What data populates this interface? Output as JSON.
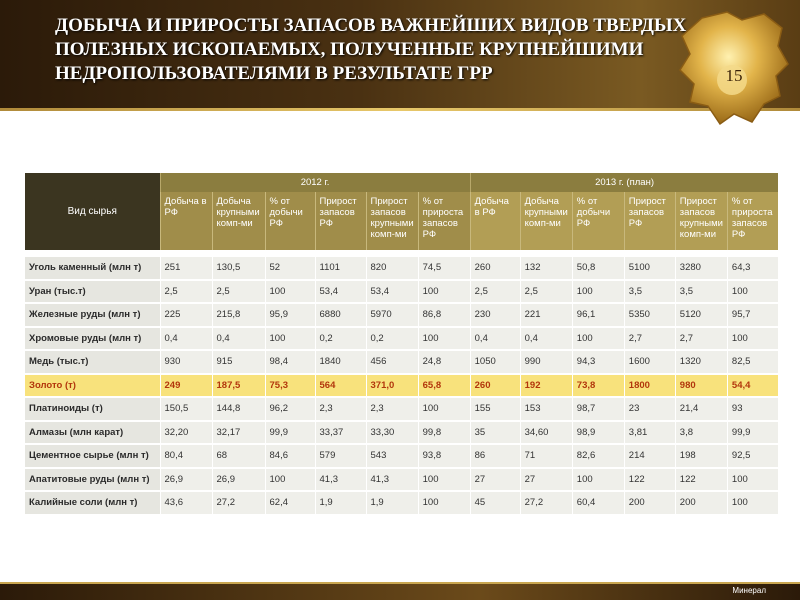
{
  "header": {
    "title": [
      "ДОБЫЧА И ПРИРОСТЫ ЗАПАСОВ ВАЖНЕЙШИХ ВИДОВ ТВЕРДЫХ",
      "ПОЛЕЗНЫХ ИСКОПАЕМЫХ, ПОЛУЧЕННЫЕ КРУПНЕЙШИМИ",
      "НЕДРОПОЛЬЗОВАТЕЛЯМИ В РЕЗУЛЬТАТЕ ГРР"
    ],
    "page_number": "15"
  },
  "table": {
    "corner": "Вид сырья",
    "groups": [
      "2012 г.",
      "2013 г. (план)"
    ],
    "columns": [
      "Добыча в РФ",
      "Добыча крупными комп-ми",
      "% от добычи РФ",
      "Прирост запасов РФ",
      "Прирост запасов крупными комп-ми",
      "% от прироста запасов РФ",
      "Добыча в РФ",
      "Добыча крупными комп-ми",
      "% от добычи РФ",
      "Прирост запасов РФ",
      "Прирост запасов крупными комп-ми",
      "% от прироста запасов РФ"
    ],
    "rows": [
      [
        "Уголь каменный (млн т)",
        "251",
        "130,5",
        "52",
        "1101",
        "820",
        "74,5",
        "260",
        "132",
        "50,8",
        "5100",
        "3280",
        "64,3"
      ],
      [
        "Уран (тыс.т)",
        "2,5",
        "2,5",
        "100",
        "53,4",
        "53,4",
        "100",
        "2,5",
        "2,5",
        "100",
        "3,5",
        "3,5",
        "100"
      ],
      [
        "Железные руды (млн т)",
        "225",
        "215,8",
        "95,9",
        "6880",
        "5970",
        "86,8",
        "230",
        "221",
        "96,1",
        "5350",
        "5120",
        "95,7"
      ],
      [
        "Хромовые руды (млн т)",
        "0,4",
        "0,4",
        "100",
        "0,2",
        "0,2",
        "100",
        "0,4",
        "0,4",
        "100",
        "2,7",
        "2,7",
        "100"
      ],
      [
        "Медь (тыс.т)",
        "930",
        "915",
        "98,4",
        "1840",
        "456",
        "24,8",
        "1050",
        "990",
        "94,3",
        "1600",
        "1320",
        "82,5"
      ],
      [
        "Золото (т)",
        "249",
        "187,5",
        "75,3",
        "564",
        "371,0",
        "65,8",
        "260",
        "192",
        "73,8",
        "1800",
        "980",
        "54,4"
      ],
      [
        "Платиноиды (т)",
        "150,5",
        "144,8",
        "96,2",
        "2,3",
        "2,3",
        "100",
        "155",
        "153",
        "98,7",
        "23",
        "21,4",
        "93"
      ],
      [
        "Алмазы (млн карат)",
        "32,20",
        "32,17",
        "99,9",
        "33,37",
        "33,30",
        "99,8",
        "35",
        "34,60",
        "98,9",
        "3,81",
        "3,8",
        "99,9"
      ],
      [
        "Цементное сырье (млн т)",
        "80,4",
        "68",
        "84,6",
        "579",
        "543",
        "93,8",
        "86",
        "71",
        "82,6",
        "214",
        "198",
        "92,5"
      ],
      [
        "Апатитовые руды (млн т)",
        "26,9",
        "26,9",
        "100",
        "41,3",
        "41,3",
        "100",
        "27",
        "27",
        "100",
        "122",
        "122",
        "100"
      ],
      [
        "Калийные соли (млн т)",
        "43,6",
        "27,2",
        "62,4",
        "1,9",
        "1,9",
        "100",
        "45",
        "27,2",
        "60,4",
        "200",
        "200",
        "100"
      ]
    ]
  },
  "footer": {
    "brand": "Минерал"
  }
}
